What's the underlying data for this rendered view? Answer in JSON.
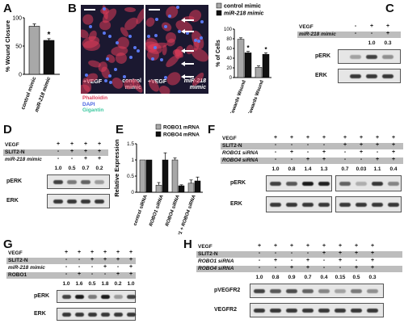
{
  "panels": {
    "A": {
      "label": "A",
      "ylabel": "% Wound Closure",
      "categories": [
        "control mimic",
        "miR-218 mimic"
      ],
      "values": [
        85,
        60
      ],
      "errors": [
        4,
        3
      ],
      "yticks": [
        "0",
        "50",
        "100"
      ],
      "star": "*"
    },
    "B": {
      "label": "B",
      "img1_label": "control mimic",
      "img2_label": "miR-218 mimic",
      "img1_vegf": "+VEGF",
      "img2_vegf": "+VEGF",
      "stain_phalloidin": "Phalloidin",
      "stain_dapi": "DAPI",
      "stain_gigantin": "Gigantin",
      "legend_control": "control mimic",
      "legend_mir": "miR-218 mimic",
      "ylabel": "% of Cells",
      "yticks": [
        "0",
        "20",
        "40",
        "60",
        "80",
        "100"
      ],
      "categories": [
        "Oriented Towards Wound",
        "Not Oriented Towards Wound"
      ],
      "star": "*",
      "colors": {
        "control": "#a8a8a8",
        "mir": "#111111",
        "phalloidin": "#e0405a",
        "dapi": "#4a64e0",
        "gigantin": "#3cc8a0"
      }
    },
    "C": {
      "label": "C",
      "row1_label": "VEGF",
      "row1_signs": [
        "-",
        "+",
        "+"
      ],
      "row2_label": "miR-218 mimic",
      "row2_signs": [
        "-",
        "-",
        "+"
      ],
      "quant": [
        "1.0",
        "0.3"
      ],
      "blot1": "pERK",
      "blot2": "ERK"
    },
    "D": {
      "label": "D",
      "row1_label": "VEGF",
      "row1_signs": [
        "+",
        "+",
        "+",
        "+"
      ],
      "row2_label": "SLIT2-N",
      "row2_signs": [
        "-",
        "+",
        "+",
        "+"
      ],
      "row3_label": "miR-218 mimic",
      "row3_signs": [
        "-",
        "-",
        "+",
        "+"
      ],
      "quant": [
        "1.0",
        "0.5",
        "0.7",
        "0.2"
      ],
      "blot1": "pERK",
      "blot2": "ERK"
    },
    "E": {
      "label": "E",
      "ylabel": "Relative Expression",
      "legend_robo1": "ROBO1 mRNA",
      "legend_robo4": "ROBO4 mRNA",
      "yticks": [
        "0",
        "0.5",
        "1",
        "1.5"
      ],
      "categories": [
        "control siRNA",
        "ROBO1 siRNA",
        "ROBO4 siRNA",
        "ROBO1 + ROBO4 siRNA"
      ]
    },
    "F": {
      "label": "F",
      "row1_label": "VEGF",
      "row1_signs": [
        "+",
        "+",
        "+",
        "+",
        "+",
        "+",
        "+",
        "+"
      ],
      "row2_label": "SLIT2-N",
      "row2_signs": [
        "-",
        "-",
        "-",
        "-",
        "+",
        "+",
        "+",
        "+"
      ],
      "row3_label": "ROBO1 siRNA",
      "row3_signs": [
        "-",
        "+",
        "-",
        "+",
        "-",
        "+",
        "-",
        "+"
      ],
      "row4_label": "ROBO4 siRNA",
      "row4_signs": [
        "-",
        "-",
        "+",
        "+",
        "-",
        "-",
        "+",
        "+"
      ],
      "quant": [
        "1.0",
        "0.8",
        "1.4",
        "1.3",
        "0.7",
        "0.03",
        "1.1",
        "0.4"
      ],
      "blot1": "pERK",
      "blot2": "ERK"
    },
    "G": {
      "label": "G",
      "row1_label": "VEGF",
      "row1_signs": [
        "+",
        "+",
        "+",
        "+",
        "+",
        "+"
      ],
      "row2_label": "SLIT2-N",
      "row2_signs": [
        "-",
        "-",
        "+",
        "+",
        "+",
        "+"
      ],
      "row3_label": "miR-218 mimic",
      "row3_signs": [
        "-",
        "-",
        "-",
        "+",
        "-",
        "+"
      ],
      "row4_label": "ROBO1",
      "row4_signs": [
        "-",
        "+",
        "-",
        "-",
        "+",
        "+"
      ],
      "quant": [
        "1.0",
        "1.6",
        "0.5",
        "1.8",
        "0.2",
        "1.0"
      ],
      "blot1": "pERK",
      "blot2": "ERK"
    },
    "H": {
      "label": "H",
      "row1_label": "VEGF",
      "row1_signs": [
        "+",
        "+",
        "+",
        "+",
        "+",
        "+",
        "+",
        "+"
      ],
      "row2_label": "SLIT2-N",
      "row2_signs": [
        "-",
        "-",
        "-",
        "-",
        "+",
        "+",
        "+",
        "+"
      ],
      "row3_label": "ROBO1 siRNA",
      "row3_signs": [
        "-",
        "+",
        "-",
        "+",
        "-",
        "+",
        "-",
        "+"
      ],
      "row4_label": "ROBO4 siRNA",
      "row4_signs": [
        "-",
        "-",
        "+",
        "+",
        "-",
        "-",
        "+",
        "+"
      ],
      "quant": [
        "1.0",
        "0.8",
        "0.9",
        "0.7",
        "0.4",
        "0.15",
        "0.5",
        "0.3"
      ],
      "blot1": "pVEGFR2",
      "blot2": "VEGFR2"
    }
  },
  "chart_data": [
    {
      "type": "bar",
      "panel": "A",
      "categories": [
        "control mimic",
        "miR-218 mimic"
      ],
      "values": [
        85,
        60
      ],
      "errors": [
        4,
        3
      ],
      "ylabel": "% Wound Closure",
      "ylim": [
        0,
        100
      ]
    },
    {
      "type": "bar",
      "panel": "B",
      "categories": [
        "Oriented Towards Wound",
        "Not Oriented Towards Wound"
      ],
      "series": [
        {
          "name": "control mimic",
          "values": [
            79,
            21
          ],
          "errors": [
            3,
            3
          ]
        },
        {
          "name": "miR-218 mimic",
          "values": [
            51,
            48
          ],
          "errors": [
            3,
            3
          ]
        }
      ],
      "ylabel": "% of Cells",
      "ylim": [
        0,
        100
      ]
    },
    {
      "type": "bar",
      "panel": "E",
      "categories": [
        "control siRNA",
        "ROBO1 siRNA",
        "ROBO4 siRNA",
        "ROBO1 + ROBO4 siRNA"
      ],
      "series": [
        {
          "name": "ROBO1 mRNA",
          "values": [
            1.0,
            0.22,
            1.0,
            0.28
          ],
          "errors": [
            0,
            0.08,
            0.06,
            0.1
          ]
        },
        {
          "name": "ROBO4 mRNA",
          "values": [
            1.0,
            1.0,
            0.2,
            0.35
          ],
          "errors": [
            0,
            0.22,
            0.03,
            0.12
          ]
        }
      ],
      "ylabel": "Relative Expression",
      "ylim": [
        0,
        1.5
      ]
    }
  ]
}
